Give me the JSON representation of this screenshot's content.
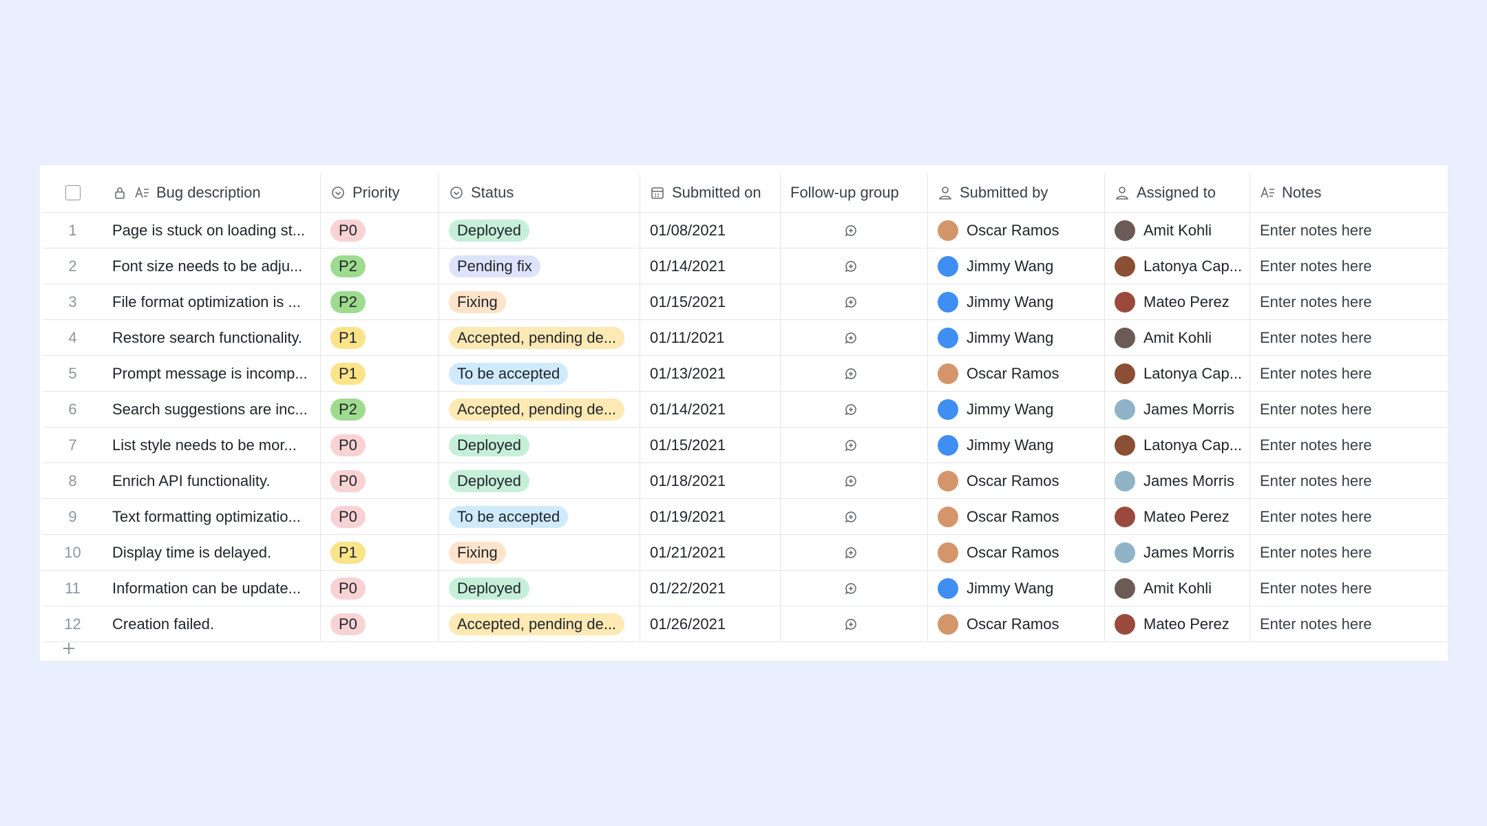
{
  "table": {
    "headers": [
      "Bug description",
      "Priority",
      "Status",
      "Submitted on",
      "Follow-up group",
      "Submitted by",
      "Assigned to",
      "Notes"
    ],
    "rows": [
      {
        "number": "1",
        "description": "Page is stuck on loading st...",
        "priority": {
          "label": "P0",
          "color": "#f9d2d4"
        },
        "status": {
          "label": "Deployed",
          "color": "#c6efd9"
        },
        "submitted_on": "01/08/2021",
        "submitted_by": {
          "name": "Oscar Ramos",
          "avatar": "#d4956a"
        },
        "assigned_to": {
          "name": "Amit Kohli",
          "avatar": "#6b5a55"
        },
        "notes": "Enter notes here"
      },
      {
        "number": "2",
        "description": "Font size needs to be adju...",
        "priority": {
          "label": "P2",
          "color": "#9edb8f"
        },
        "status": {
          "label": "Pending fix",
          "color": "#dde3fb"
        },
        "submitted_on": "01/14/2021",
        "submitted_by": {
          "name": "Jimmy Wang",
          "avatar": "#3f8ef2"
        },
        "assigned_to": {
          "name": "Latonya Cap...",
          "avatar": "#8a4f35"
        },
        "notes": "Enter notes here"
      },
      {
        "number": "3",
        "description": "File format optimization is ...",
        "priority": {
          "label": "P2",
          "color": "#9edb8f"
        },
        "status": {
          "label": "Fixing",
          "color": "#fde3c9"
        },
        "submitted_on": "01/15/2021",
        "submitted_by": {
          "name": "Jimmy Wang",
          "avatar": "#3f8ef2"
        },
        "assigned_to": {
          "name": "Mateo Perez",
          "avatar": "#9a4a3c"
        },
        "notes": "Enter notes here"
      },
      {
        "number": "4",
        "description": "Restore search functionality.",
        "priority": {
          "label": "P1",
          "color": "#fbe38a"
        },
        "status": {
          "label": "Accepted, pending de...",
          "color": "#fde9b3"
        },
        "submitted_on": "01/11/2021",
        "submitted_by": {
          "name": "Jimmy Wang",
          "avatar": "#3f8ef2"
        },
        "assigned_to": {
          "name": "Amit Kohli",
          "avatar": "#6b5a55"
        },
        "notes": "Enter notes here"
      },
      {
        "number": "5",
        "description": "Prompt message is incomp...",
        "priority": {
          "label": "P1",
          "color": "#fbe38a"
        },
        "status": {
          "label": "To be accepted",
          "color": "#cfeafb"
        },
        "submitted_on": "01/13/2021",
        "submitted_by": {
          "name": "Oscar Ramos",
          "avatar": "#d4956a"
        },
        "assigned_to": {
          "name": "Latonya Cap...",
          "avatar": "#8a4f35"
        },
        "notes": "Enter notes here"
      },
      {
        "number": "6",
        "description": "Search suggestions are inc...",
        "priority": {
          "label": "P2",
          "color": "#9edb8f"
        },
        "status": {
          "label": "Accepted, pending de...",
          "color": "#fde9b3"
        },
        "submitted_on": "01/14/2021",
        "submitted_by": {
          "name": "Jimmy Wang",
          "avatar": "#3f8ef2"
        },
        "assigned_to": {
          "name": "James Morris",
          "avatar": "#8fb4c8"
        },
        "notes": "Enter notes here"
      },
      {
        "number": "7",
        "description": "List style needs to be mor...",
        "priority": {
          "label": "P0",
          "color": "#f9d2d4"
        },
        "status": {
          "label": "Deployed",
          "color": "#c6efd9"
        },
        "submitted_on": "01/15/2021",
        "submitted_by": {
          "name": "Jimmy Wang",
          "avatar": "#3f8ef2"
        },
        "assigned_to": {
          "name": "Latonya Cap...",
          "avatar": "#8a4f35"
        },
        "notes": "Enter notes here"
      },
      {
        "number": "8",
        "description": "Enrich API functionality.",
        "priority": {
          "label": "P0",
          "color": "#f9d2d4"
        },
        "status": {
          "label": "Deployed",
          "color": "#c6efd9"
        },
        "submitted_on": "01/18/2021",
        "submitted_by": {
          "name": "Oscar Ramos",
          "avatar": "#d4956a"
        },
        "assigned_to": {
          "name": "James Morris",
          "avatar": "#8fb4c8"
        },
        "notes": "Enter notes here"
      },
      {
        "number": "9",
        "description": "Text formatting optimizatio...",
        "priority": {
          "label": "P0",
          "color": "#f9d2d4"
        },
        "status": {
          "label": "To be accepted",
          "color": "#cfeafb"
        },
        "submitted_on": "01/19/2021",
        "submitted_by": {
          "name": "Oscar Ramos",
          "avatar": "#d4956a"
        },
        "assigned_to": {
          "name": "Mateo Perez",
          "avatar": "#9a4a3c"
        },
        "notes": "Enter notes here"
      },
      {
        "number": "10",
        "description": "Display time is delayed.",
        "priority": {
          "label": "P1",
          "color": "#fbe38a"
        },
        "status": {
          "label": "Fixing",
          "color": "#fde3c9"
        },
        "submitted_on": "01/21/2021",
        "submitted_by": {
          "name": "Oscar Ramos",
          "avatar": "#d4956a"
        },
        "assigned_to": {
          "name": "James Morris",
          "avatar": "#8fb4c8"
        },
        "notes": "Enter notes here"
      },
      {
        "number": "11",
        "description": "Information can be update...",
        "priority": {
          "label": "P0",
          "color": "#f9d2d4"
        },
        "status": {
          "label": "Deployed",
          "color": "#c6efd9"
        },
        "submitted_on": "01/22/2021",
        "submitted_by": {
          "name": "Jimmy Wang",
          "avatar": "#3f8ef2"
        },
        "assigned_to": {
          "name": "Amit Kohli",
          "avatar": "#6b5a55"
        },
        "notes": "Enter notes here"
      },
      {
        "number": "12",
        "description": "Creation failed.",
        "priority": {
          "label": "P0",
          "color": "#f9d2d4"
        },
        "status": {
          "label": "Accepted, pending de...",
          "color": "#fde9b3"
        },
        "submitted_on": "01/26/2021",
        "submitted_by": {
          "name": "Oscar Ramos",
          "avatar": "#d4956a"
        },
        "assigned_to": {
          "name": "Mateo Perez",
          "avatar": "#9a4a3c"
        },
        "notes": "Enter notes here"
      }
    ]
  }
}
